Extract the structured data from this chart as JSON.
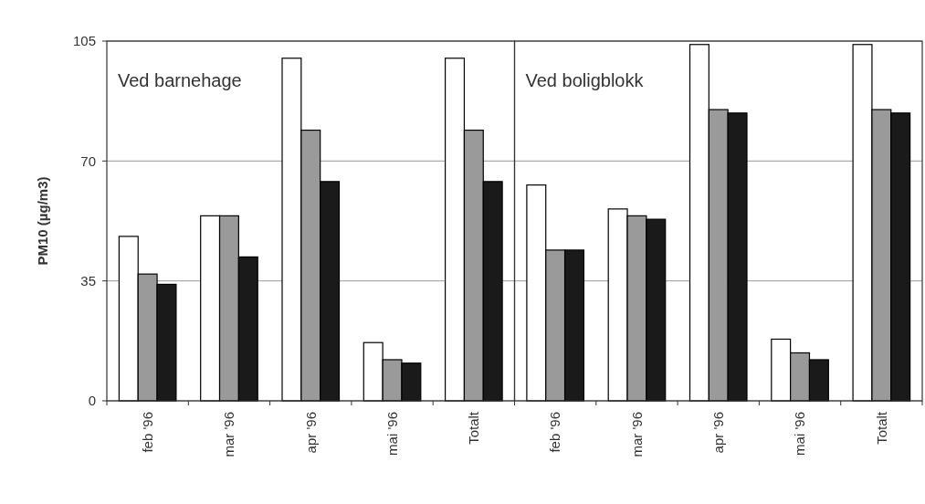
{
  "chart_data": [
    {
      "type": "bar",
      "ylabel": "PM10 (µg/m3)",
      "categories": [
        "feb '96",
        "mar '96",
        "apr '96",
        "mai '96",
        "Totalt"
      ],
      "series": [
        {
          "color": "#ffffff",
          "values": [
            48,
            54,
            100,
            17,
            100
          ]
        },
        {
          "color": "#9a9a9a",
          "values": [
            37,
            54,
            79,
            12,
            79
          ]
        },
        {
          "color": "#1a1a1a",
          "values": [
            34,
            42,
            64,
            11,
            64
          ]
        }
      ],
      "ylim": [
        0,
        105
      ],
      "yticks": [
        0,
        35,
        70,
        105
      ],
      "grid": "y",
      "annotations": [
        "Ved barnehage"
      ]
    },
    {
      "type": "bar",
      "categories": [
        "feb '96",
        "mar '96",
        "apr '96",
        "mai '96",
        "Totalt"
      ],
      "series": [
        {
          "color": "#ffffff",
          "values": [
            63,
            56,
            104,
            18,
            104
          ]
        },
        {
          "color": "#9a9a9a",
          "values": [
            44,
            54,
            85,
            14,
            85
          ]
        },
        {
          "color": "#1a1a1a",
          "values": [
            44,
            53,
            84,
            12,
            84
          ]
        }
      ],
      "ylim": [
        0,
        105
      ],
      "yticks": [
        0,
        35,
        70,
        105
      ],
      "grid": "y",
      "tick_labels": "x",
      "annotations": [
        "Ved boligblokk"
      ]
    }
  ]
}
